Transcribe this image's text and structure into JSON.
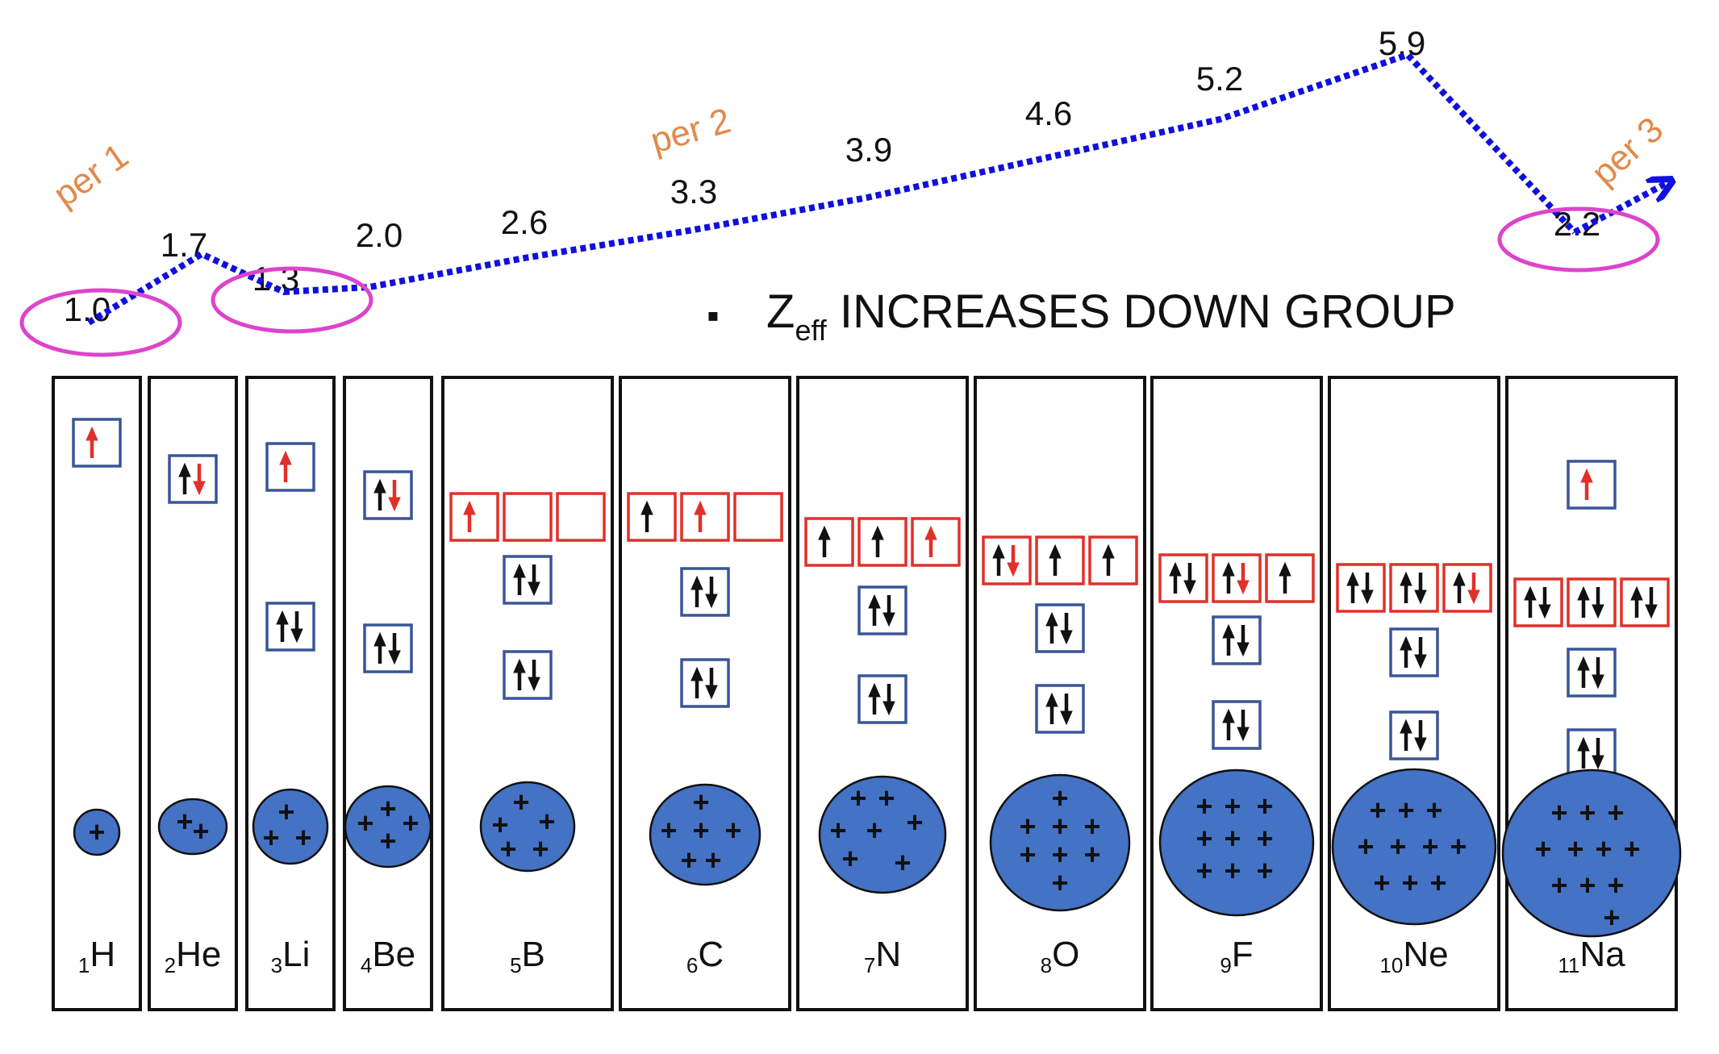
{
  "trend": {
    "values": [
      "1.0",
      "1.7",
      "1.3",
      "2.0",
      "2.6",
      "3.3",
      "3.9",
      "4.6",
      "5.2",
      "5.9",
      "2.2"
    ],
    "circled": [
      0,
      2,
      10
    ],
    "period_labels": [
      "per 1",
      "per 2",
      "per 3"
    ]
  },
  "note": {
    "bullet": "▪",
    "z_main": "Z",
    "z_sub": "eff",
    "rest": " INCREASES DOWN GROUP"
  },
  "elements": [
    {
      "z": "1",
      "symbol": "H",
      "shells": [
        [
          "u_red"
        ]
      ],
      "plus_count": 1
    },
    {
      "z": "2",
      "symbol": "He",
      "shells": [
        [
          "ud_red"
        ]
      ],
      "plus_count": 2
    },
    {
      "z": "3",
      "symbol": "Li",
      "shells": [
        [
          "ud"
        ],
        [
          "u_red"
        ]
      ],
      "plus_count": 3
    },
    {
      "z": "4",
      "symbol": "Be",
      "shells": [
        [
          "ud"
        ],
        [
          "ud_red"
        ]
      ],
      "plus_count": 4
    },
    {
      "z": "5",
      "symbol": "B",
      "shells": [
        [
          "ud"
        ],
        [
          "ud"
        ],
        [
          "u_red",
          "e",
          "e"
        ]
      ],
      "plus_count": 5
    },
    {
      "z": "6",
      "symbol": "C",
      "shells": [
        [
          "ud"
        ],
        [
          "ud"
        ],
        [
          "u",
          "u_red",
          "e"
        ]
      ],
      "plus_count": 6
    },
    {
      "z": "7",
      "symbol": "N",
      "shells": [
        [
          "ud"
        ],
        [
          "ud"
        ],
        [
          "u",
          "u",
          "u_red"
        ]
      ],
      "plus_count": 7
    },
    {
      "z": "8",
      "symbol": "O",
      "shells": [
        [
          "ud"
        ],
        [
          "ud"
        ],
        [
          "ud_red",
          "u",
          "u"
        ]
      ],
      "plus_count": 8
    },
    {
      "z": "9",
      "symbol": "F",
      "shells": [
        [
          "ud"
        ],
        [
          "ud"
        ],
        [
          "ud",
          "ud_red",
          "u"
        ]
      ],
      "plus_count": 9
    },
    {
      "z": "10",
      "symbol": "Ne",
      "shells": [
        [
          "ud"
        ],
        [
          "ud"
        ],
        [
          "ud",
          "ud",
          "ud_red"
        ]
      ],
      "plus_count": 10
    },
    {
      "z": "11",
      "symbol": "Na",
      "shells": [
        [
          "ud"
        ],
        [
          "ud"
        ],
        [
          "ud",
          "ud",
          "ud"
        ],
        [
          "u_red"
        ]
      ],
      "plus_count": 11
    }
  ],
  "colors": {
    "trend_line": "#1010dd",
    "highlight_ellipse": "#dd44cc",
    "period_label": "#e08a4a",
    "inner_box": "#3a5597",
    "outer_box": "#e0302a",
    "arrow_black": "#111111",
    "arrow_red": "#e0302a",
    "nucleus_fill": "#4472c4",
    "panel_border": "#111111",
    "text": "#111111"
  },
  "legend_note": {
    "orbital_codes": {
      "u": "single up arrow",
      "u_red": "single up arrow (red)",
      "ud": "up-down pair",
      "ud_red": "up-down pair, down arrow red",
      "e": "empty"
    }
  }
}
